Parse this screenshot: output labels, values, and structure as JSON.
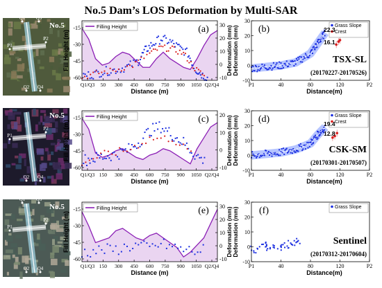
{
  "title": "No.5 Dam’s LOS Deformation by Multi-SAR",
  "colors": {
    "fill": "#d9b3e6",
    "line": "#8b1fb5",
    "blue": "#1c2fe0",
    "red": "#d91e1e",
    "grass": "#1c2fe0",
    "crest": "#d91e1e",
    "band": "#7a96ff"
  },
  "rows": [
    {
      "thumb_label": "No.5",
      "thumb_points": [
        "Q1",
        "Q3",
        "P1",
        "P2",
        "Q2",
        "Q4"
      ],
      "left": {
        "panel": "(a)",
        "legend": "Filling Height",
        "ylabel_left": "Fill Height (m)",
        "ylabel_right": "Deformation (mm)",
        "xlabel": "Distance (m)",
        "yticks_left": [
          "-15",
          "-30",
          "-45",
          "-60"
        ],
        "yticks_right": [
          "30",
          "20",
          "10",
          "0",
          "-10"
        ],
        "xticks": [
          "Q1/Q3",
          "50",
          "300",
          "450",
          "600",
          "750",
          "900",
          "1050",
          "Q2/Q4"
        ]
      },
      "right": {
        "panel": "(b)",
        "legend": [
          "Grass Slope",
          "Crest"
        ],
        "ylabel": "Deformation (mm)",
        "xlabel": "Distance(m)",
        "yticks": [
          "30",
          "20",
          "10",
          "0",
          "-10"
        ],
        "xticks": [
          "P1",
          "40",
          "80",
          "120",
          "P2"
        ],
        "annotations": [
          "22.3",
          "16.1"
        ],
        "sensor": "TSX-SL",
        "period": "(20170227-20170526)"
      }
    },
    {
      "thumb_label": "No.5",
      "thumb_points": [
        "P1",
        "P2",
        "Q2",
        "Q4"
      ],
      "left": {
        "panel": "(c)",
        "legend": "Filling Height",
        "ylabel_left": "Fill Height (m)",
        "ylabel_right": "Deformation (mm)",
        "xlabel": "Distance (m)",
        "yticks_left": [
          "-15",
          "-30",
          "-45",
          "-60"
        ],
        "yticks_right": [
          "20",
          "10",
          "0",
          "-10"
        ],
        "xticks": [
          "Q1/Q3",
          "150",
          "300",
          "450",
          "600",
          "750",
          "900",
          "1050",
          "Q2/Q4"
        ]
      },
      "right": {
        "panel": "(d)",
        "legend": [
          "Grass Slope",
          "Crest"
        ],
        "ylabel": "Deformation (mm)",
        "xlabel": "Distance(m)",
        "yticks": [
          "30",
          "20",
          "10",
          "0",
          "-10"
        ],
        "xticks": [
          "P1",
          "40",
          "80",
          "120",
          "P2"
        ],
        "annotations": [
          "19.4",
          "12.8"
        ],
        "sensor": "CSK-SM",
        "period": "(20170301-20170507)"
      }
    },
    {
      "thumb_label": "No.5",
      "thumb_points": [
        "Q1",
        "Q3",
        "P1",
        "P2",
        "Q2",
        "Q4"
      ],
      "left": {
        "panel": "(e)",
        "legend": "Filling Height",
        "ylabel_left": "Fill Height (m)",
        "ylabel_right": "Deformation (mm)",
        "xlabel": "Distance (m)",
        "yticks_left": [
          "-15",
          "-30",
          "-45",
          "-60"
        ],
        "yticks_right": [
          "30",
          "20",
          "10",
          "0",
          "-10"
        ],
        "xticks": [
          "Q1/Q3",
          "150",
          "300",
          "450",
          "600",
          "750",
          "900",
          "1050",
          "Q2/Q4"
        ]
      },
      "right": {
        "panel": "(f)",
        "legend": [
          "Grass Slope"
        ],
        "ylabel": "Deformation (mm)",
        "xlabel": "Distance(m)",
        "yticks": [
          "30",
          "20",
          "10",
          "0",
          "-10"
        ],
        "xticks": [
          "P1",
          "40",
          "80",
          "120",
          "P2"
        ],
        "annotations": [],
        "sensor": "Sentinel",
        "period": "(20170312-20170604)"
      }
    }
  ],
  "chart_data": [
    {
      "panel": "(a)",
      "type": "line",
      "xlim": [
        0,
        1200
      ],
      "ylim_left": [
        -60,
        -5
      ],
      "ylim_right": [
        -10,
        30
      ],
      "series": [
        {
          "name": "Filling Height",
          "axis": "left",
          "x": [
            0,
            60,
            120,
            180,
            240,
            300,
            360,
            420,
            480,
            540,
            600,
            660,
            720,
            780,
            840,
            900,
            960,
            1020,
            1080,
            1140,
            1200
          ],
          "y": [
            -12,
            -22,
            -40,
            -46,
            -44,
            -38,
            -34,
            -36,
            -42,
            -48,
            -48,
            -40,
            -34,
            -40,
            -44,
            -48,
            -50,
            -40,
            -28,
            -18,
            -14
          ]
        }
      ],
      "points_blue": [
        [
          0,
          -7
        ],
        [
          100,
          -6
        ],
        [
          200,
          -4
        ],
        [
          300,
          -3
        ],
        [
          400,
          -1
        ],
        [
          500,
          3
        ],
        [
          560,
          10
        ],
        [
          620,
          14
        ],
        [
          700,
          18
        ],
        [
          780,
          16
        ],
        [
          860,
          12
        ],
        [
          940,
          8
        ],
        [
          1000,
          -2
        ],
        [
          1060,
          -6
        ],
        [
          1120,
          -9
        ]
      ],
      "points_red": [
        [
          0,
          -8
        ],
        [
          150,
          -5
        ],
        [
          300,
          -3
        ],
        [
          450,
          0
        ],
        [
          600,
          8
        ],
        [
          700,
          12
        ],
        [
          800,
          11
        ],
        [
          900,
          8
        ],
        [
          1000,
          -2
        ],
        [
          1100,
          -8
        ]
      ]
    },
    {
      "panel": "(b)",
      "type": "scatter",
      "xlim": [
        0,
        160
      ],
      "ylim": [
        -10,
        30
      ],
      "series": [
        {
          "name": "Grass Slope",
          "x": [
            0,
            20,
            40,
            60,
            80,
            90,
            100
          ],
          "y": [
            -2,
            -1,
            0,
            2,
            8,
            15,
            22
          ]
        },
        {
          "name": "Crest",
          "x": [
            115,
            118,
            120
          ],
          "y": [
            14,
            16,
            17
          ]
        }
      ]
    },
    {
      "panel": "(c)",
      "type": "line",
      "xlim": [
        0,
        1200
      ],
      "ylim_left": [
        -60,
        -5
      ],
      "ylim_right": [
        -10,
        20
      ],
      "series": [
        {
          "name": "Filling Height",
          "axis": "left",
          "x": [
            0,
            60,
            120,
            180,
            240,
            300,
            360,
            420,
            480,
            540,
            600,
            660,
            720,
            780,
            840,
            900,
            960,
            1020,
            1080,
            1140,
            1200
          ],
          "y": [
            -12,
            -22,
            -44,
            -48,
            -46,
            -42,
            -40,
            -44,
            -48,
            -50,
            -46,
            -44,
            -40,
            -42,
            -46,
            -50,
            -54,
            -40,
            -30,
            -20,
            -16
          ]
        }
      ],
      "points_blue": [
        [
          0,
          -5
        ],
        [
          100,
          -4
        ],
        [
          200,
          -3
        ],
        [
          300,
          -2
        ],
        [
          400,
          0
        ],
        [
          500,
          4
        ],
        [
          600,
          10
        ],
        [
          700,
          12
        ],
        [
          800,
          8
        ],
        [
          900,
          4
        ],
        [
          1000,
          -2
        ],
        [
          1100,
          -6
        ]
      ],
      "points_red": [
        [
          0,
          -6
        ],
        [
          200,
          -2
        ],
        [
          400,
          0
        ],
        [
          600,
          6
        ],
        [
          800,
          6
        ],
        [
          1000,
          -3
        ]
      ]
    },
    {
      "panel": "(d)",
      "type": "scatter",
      "xlim": [
        0,
        160
      ],
      "ylim": [
        -10,
        30
      ],
      "series": [
        {
          "name": "Grass Slope",
          "x": [
            0,
            20,
            40,
            60,
            80,
            90,
            100
          ],
          "y": [
            0,
            1,
            2,
            4,
            8,
            14,
            19
          ]
        },
        {
          "name": "Crest",
          "x": [
            110,
            113,
            116
          ],
          "y": [
            12,
            13,
            15
          ]
        }
      ]
    },
    {
      "panel": "(e)",
      "type": "line",
      "xlim": [
        0,
        1200
      ],
      "ylim_left": [
        -60,
        -10
      ],
      "ylim_right": [
        -10,
        30
      ],
      "series": [
        {
          "name": "Filling Height",
          "axis": "left",
          "x": [
            0,
            60,
            120,
            180,
            240,
            300,
            360,
            420,
            480,
            540,
            600,
            660,
            720,
            780,
            840,
            900,
            960,
            1020,
            1080,
            1140,
            1200
          ],
          "y": [
            -18,
            -30,
            -44,
            -42,
            -40,
            -34,
            -32,
            -36,
            -40,
            -42,
            -38,
            -36,
            -40,
            -44,
            -48,
            -56,
            -52,
            -46,
            -40,
            -28,
            -16
          ]
        }
      ],
      "points_blue": [
        [
          0,
          -4
        ],
        [
          100,
          -3
        ],
        [
          200,
          -2
        ],
        [
          300,
          -2
        ],
        [
          400,
          0
        ],
        [
          500,
          1
        ],
        [
          600,
          -1
        ],
        [
          700,
          2
        ],
        [
          800,
          0
        ],
        [
          900,
          -2
        ],
        [
          1000,
          -3
        ],
        [
          1100,
          -2
        ]
      ]
    },
    {
      "panel": "(f)",
      "type": "scatter",
      "xlim": [
        0,
        160
      ],
      "ylim": [
        -10,
        30
      ],
      "series": [
        {
          "name": "Grass Slope",
          "x": [
            5,
            15,
            25,
            35,
            45,
            55,
            60
          ],
          "y": [
            -2,
            0,
            1,
            -1,
            2,
            1,
            3
          ]
        }
      ]
    }
  ]
}
